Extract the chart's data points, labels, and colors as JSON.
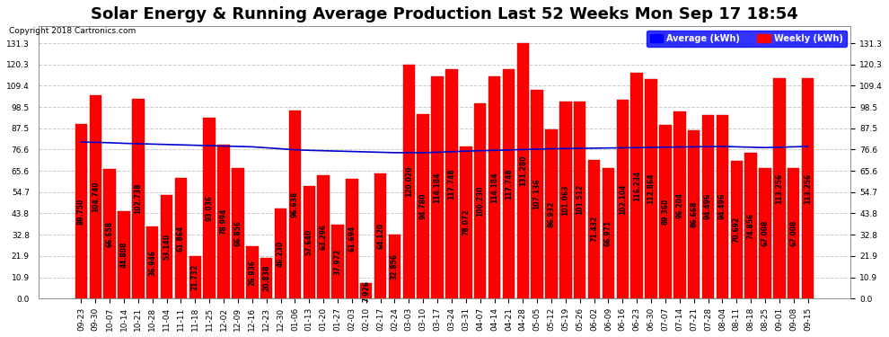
{
  "title": "Solar Energy & Running Average Production Last 52 Weeks Mon Sep 17 18:54",
  "copyright": "Copyright 2018 Cartronics.com",
  "categories": [
    "09-23",
    "09-30",
    "10-07",
    "10-14",
    "10-21",
    "10-28",
    "11-04",
    "11-11",
    "11-18",
    "11-25",
    "12-02",
    "12-09",
    "12-16",
    "12-23",
    "12-30",
    "01-06",
    "01-13",
    "01-20",
    "01-27",
    "02-03",
    "02-10",
    "02-17",
    "02-24",
    "03-03",
    "03-10",
    "03-17",
    "03-24",
    "03-31",
    "04-07",
    "04-14",
    "04-21",
    "04-28",
    "05-05",
    "05-12",
    "05-19",
    "05-26",
    "06-02",
    "06-09",
    "06-16",
    "06-23",
    "06-30",
    "07-07",
    "07-14",
    "07-21",
    "07-28",
    "08-04",
    "08-11",
    "08-18",
    "08-25",
    "09-01",
    "09-08",
    "09-15"
  ],
  "weekly_values": [
    89.75,
    104.74,
    66.658,
    44.808,
    102.738,
    36.946,
    53.14,
    61.864,
    21.732,
    93.036,
    78.994,
    66.856,
    26.936,
    20.838,
    46.23,
    96.638,
    57.64,
    63.296,
    37.972,
    61.694,
    7.926,
    64.12,
    32.856,
    120.02,
    94.78,
    114.184,
    117.748,
    78.072,
    100.23,
    114.184,
    117.748,
    131.28,
    107.136,
    86.932,
    101.063,
    101.512,
    71.432,
    66.971,
    102.104,
    116.234,
    112.864,
    89.36,
    96.204,
    86.668,
    94.496,
    94.496,
    70.692,
    74.856,
    67.008,
    113.256,
    67.008,
    113.256
  ],
  "average_values": [
    80.5,
    80.3,
    80.1,
    79.8,
    79.6,
    79.4,
    79.2,
    79.0,
    78.8,
    78.6,
    78.4,
    78.2,
    78.0,
    77.5,
    77.0,
    76.5,
    76.2,
    76.0,
    75.8,
    75.6,
    75.4,
    75.2,
    75.0,
    75.0,
    75.0,
    75.2,
    75.5,
    75.8,
    76.0,
    76.2,
    76.4,
    76.6,
    76.8,
    77.0,
    77.1,
    77.2,
    77.3,
    77.4,
    77.5,
    77.6,
    77.7,
    77.8,
    77.9,
    78.0,
    78.1,
    78.2,
    78.0,
    77.8,
    77.6,
    77.8,
    78.0,
    78.2
  ],
  "bar_color": "#ff0000",
  "bar_edge_color": "#cc0000",
  "avg_line_color": "#0000cc",
  "background_color": "#ffffff",
  "grid_color": "#cccccc",
  "yticks": [
    0.0,
    10.9,
    21.9,
    32.8,
    43.8,
    54.7,
    65.6,
    76.6,
    87.5,
    98.5,
    109.4,
    120.3,
    131.3
  ],
  "ylabel_right": true,
  "legend_avg_color": "#0000ff",
  "legend_weekly_color": "#ff0000",
  "legend_avg_label": "Average (kWh)",
  "legend_weekly_label": "Weekly (kWh)",
  "title_fontsize": 13,
  "tick_fontsize": 6.5,
  "value_fontsize": 5.5
}
